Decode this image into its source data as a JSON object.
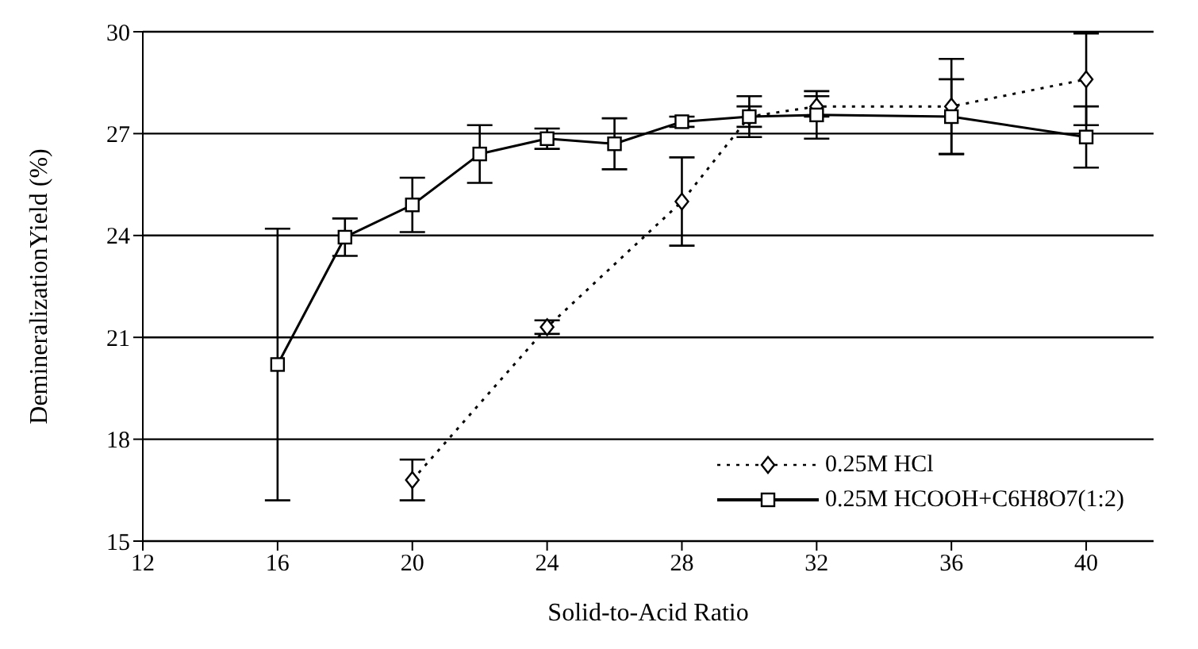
{
  "chart_data": {
    "type": "line",
    "xlabel": "Solid-to-Acid Ratio",
    "ylabel": "DemineralizationYield (%)",
    "xlim": [
      12,
      42
    ],
    "xticks": [
      12,
      16,
      20,
      24,
      28,
      32,
      36,
      40
    ],
    "ylim": [
      15,
      30
    ],
    "yticks": [
      15,
      18,
      21,
      24,
      27,
      30
    ],
    "grid": "y",
    "legend": "bottom right",
    "series": [
      {
        "name": "0.25M HCl",
        "color": "#000000",
        "marker": "diamond",
        "line_style": "dotted",
        "x": [
          20,
          24,
          28,
          30,
          32,
          36,
          40
        ],
        "values": [
          16.8,
          21.3,
          25.0,
          27.5,
          27.8,
          27.8,
          28.6
        ],
        "errors": [
          0.6,
          0.2,
          1.3,
          0.6,
          0.3,
          1.4,
          1.35
        ]
      },
      {
        "name": "0.25M HCOOH+C6H8O7(1:2)",
        "color": "#000000",
        "marker": "square",
        "line_style": "solid",
        "x": [
          16,
          18,
          20,
          22,
          24,
          26,
          28,
          30,
          32,
          36,
          40
        ],
        "values": [
          20.2,
          23.95,
          24.9,
          26.4,
          26.85,
          26.7,
          27.35,
          27.5,
          27.55,
          27.5,
          26.9
        ],
        "errors": [
          4.0,
          0.55,
          0.8,
          0.85,
          0.3,
          0.75,
          0.15,
          0.3,
          0.7,
          1.1,
          0.9
        ]
      }
    ]
  }
}
